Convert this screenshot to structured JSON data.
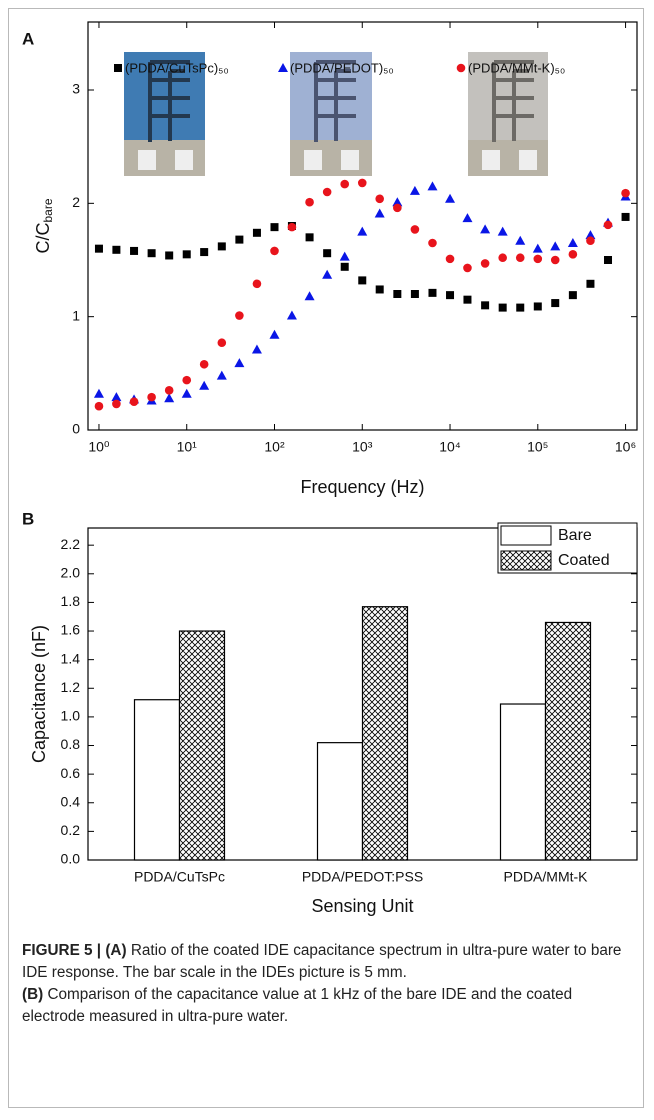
{
  "chart_data": [
    {
      "type": "scatter",
      "panel_label": "A",
      "x_label": "Frequency (Hz)",
      "y_label": "C/C",
      "y_label_subscript": "bare",
      "log_x": true,
      "xlim": [
        0.75,
        1350000
      ],
      "ylim": [
        0,
        3.6
      ],
      "xticks": [
        {
          "value": 1,
          "label": "10⁰"
        },
        {
          "value": 10,
          "label": "10¹"
        },
        {
          "value": 100,
          "label": "10²"
        },
        {
          "value": 1000,
          "label": "10³"
        },
        {
          "value": 10000,
          "label": "10⁴"
        },
        {
          "value": 100000,
          "label": "10⁵"
        },
        {
          "value": 1000000,
          "label": "10⁶"
        }
      ],
      "yticks": [
        0,
        1,
        2,
        3
      ],
      "x": [
        1,
        1.58,
        2.51,
        3.98,
        6.31,
        10,
        15.8,
        25.1,
        39.8,
        63.1,
        100,
        158,
        251,
        398,
        631,
        1000,
        1580,
        2510,
        3980,
        6310,
        10000,
        15800,
        25100,
        39800,
        63100,
        100000,
        158000,
        251000,
        398000,
        631000,
        1000000
      ],
      "series": [
        {
          "name": "(PDDA/CuTsPc)₅₀",
          "color": "#000000",
          "marker": "square",
          "values": [
            1.6,
            1.59,
            1.58,
            1.56,
            1.54,
            1.55,
            1.57,
            1.62,
            1.68,
            1.74,
            1.79,
            1.8,
            1.7,
            1.56,
            1.44,
            1.32,
            1.24,
            1.2,
            1.2,
            1.21,
            1.19,
            1.15,
            1.1,
            1.08,
            1.08,
            1.09,
            1.12,
            1.19,
            1.29,
            1.5,
            1.88
          ]
        },
        {
          "name": "(PDDA/PEDOT)₅₀",
          "color": "#0a16e6",
          "marker": "triangle",
          "values": [
            0.32,
            0.29,
            0.27,
            0.26,
            0.28,
            0.32,
            0.39,
            0.48,
            0.59,
            0.71,
            0.84,
            1.01,
            1.18,
            1.37,
            1.53,
            1.75,
            1.91,
            2.01,
            2.11,
            2.15,
            2.04,
            1.87,
            1.77,
            1.75,
            1.67,
            1.6,
            1.62,
            1.65,
            1.72,
            1.83,
            2.06
          ]
        },
        {
          "name": "(PDDA/MMt-K)₅₀",
          "color": "#e8141c",
          "marker": "circle",
          "values": [
            0.21,
            0.23,
            0.25,
            0.29,
            0.35,
            0.44,
            0.58,
            0.77,
            1.01,
            1.29,
            1.58,
            1.79,
            2.01,
            2.1,
            2.17,
            2.18,
            2.04,
            1.96,
            1.77,
            1.65,
            1.51,
            1.43,
            1.47,
            1.52,
            1.52,
            1.51,
            1.5,
            1.55,
            1.67,
            1.81,
            2.09
          ]
        }
      ]
    },
    {
      "type": "bar",
      "panel_label": "B",
      "x_label": "Sensing Unit",
      "y_label": "Capacitance (nF)",
      "ylim": [
        0,
        2.32
      ],
      "yticks": [
        {
          "value": 0,
          "label": "0.0"
        },
        0.2,
        0.4,
        0.6,
        0.8,
        {
          "value": 1,
          "label": "1.0"
        },
        1.2,
        1.4,
        1.6,
        1.8,
        {
          "value": 2,
          "label": "2.0"
        },
        2.2
      ],
      "categories": [
        "PDDA/CuTsPc",
        "PDDA/PEDOT:PSS",
        "PDDA/MMt-K"
      ],
      "legend": "upper right",
      "series": [
        {
          "name": "Bare",
          "color": "#ffffff",
          "values": [
            1.12,
            0.82,
            1.09
          ]
        },
        {
          "name": "Coated",
          "color": "#ffffff",
          "hatch": "cross",
          "values": [
            1.6,
            1.77,
            1.66
          ]
        }
      ]
    }
  ],
  "caption": {
    "label": "FIGURE 5 |",
    "part_a_label": "(A)",
    "part_a_text": "Ratio of the coated IDE capacitance spectrum in ultra-pure water to bare IDE response. The bar scale in the IDEs picture is 5 mm.",
    "part_b_label": "(B)",
    "part_b_text": "Comparison of the capacitance value at 1 kHz of the bare IDE and the coated electrode measured in ultra-pure water."
  }
}
